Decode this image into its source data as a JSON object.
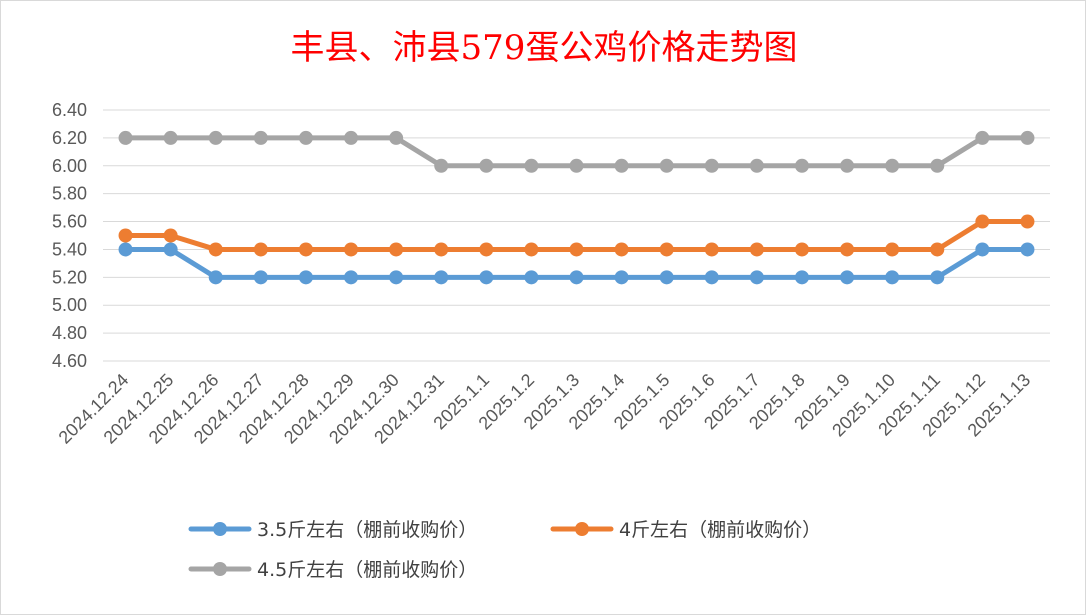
{
  "chart_data": {
    "type": "line",
    "title": "丰县、沛县579蛋公鸡价格走势图",
    "categories": [
      "2024.12.24",
      "2024.12.25",
      "2024.12.26",
      "2024.12.27",
      "2024.12.28",
      "2024.12.29",
      "2024.12.30",
      "2024.12.31",
      "2025.1.1",
      "2025.1.2",
      "2025.1.3",
      "2025.1.4",
      "2025.1.5",
      "2025.1.6",
      "2025.1.7",
      "2025.1.8",
      "2025.1.9",
      "2025.1.10",
      "2025.1.11",
      "2025.1.12",
      "2025.1.13"
    ],
    "yticks": [
      "4.60",
      "4.80",
      "5.00",
      "5.20",
      "5.40",
      "5.60",
      "5.80",
      "6.00",
      "6.20",
      "6.40"
    ],
    "ylim": [
      4.6,
      6.4
    ],
    "grid": true,
    "legend_position": "bottom",
    "series": [
      {
        "name": "3.5斤左右（棚前收购价）",
        "color": "#5b9bd5",
        "values": [
          5.4,
          5.4,
          5.2,
          5.2,
          5.2,
          5.2,
          5.2,
          5.2,
          5.2,
          5.2,
          5.2,
          5.2,
          5.2,
          5.2,
          5.2,
          5.2,
          5.2,
          5.2,
          5.2,
          5.4,
          5.4
        ]
      },
      {
        "name": "4斤左右（棚前收购价）",
        "color": "#ed7d31",
        "values": [
          5.5,
          5.5,
          5.4,
          5.4,
          5.4,
          5.4,
          5.4,
          5.4,
          5.4,
          5.4,
          5.4,
          5.4,
          5.4,
          5.4,
          5.4,
          5.4,
          5.4,
          5.4,
          5.4,
          5.6,
          5.6
        ]
      },
      {
        "name": "4.5斤左右（棚前收购价）",
        "color": "#a5a5a5",
        "values": [
          6.2,
          6.2,
          6.2,
          6.2,
          6.2,
          6.2,
          6.2,
          6.0,
          6.0,
          6.0,
          6.0,
          6.0,
          6.0,
          6.0,
          6.0,
          6.0,
          6.0,
          6.0,
          6.0,
          6.2,
          6.2
        ]
      }
    ]
  }
}
